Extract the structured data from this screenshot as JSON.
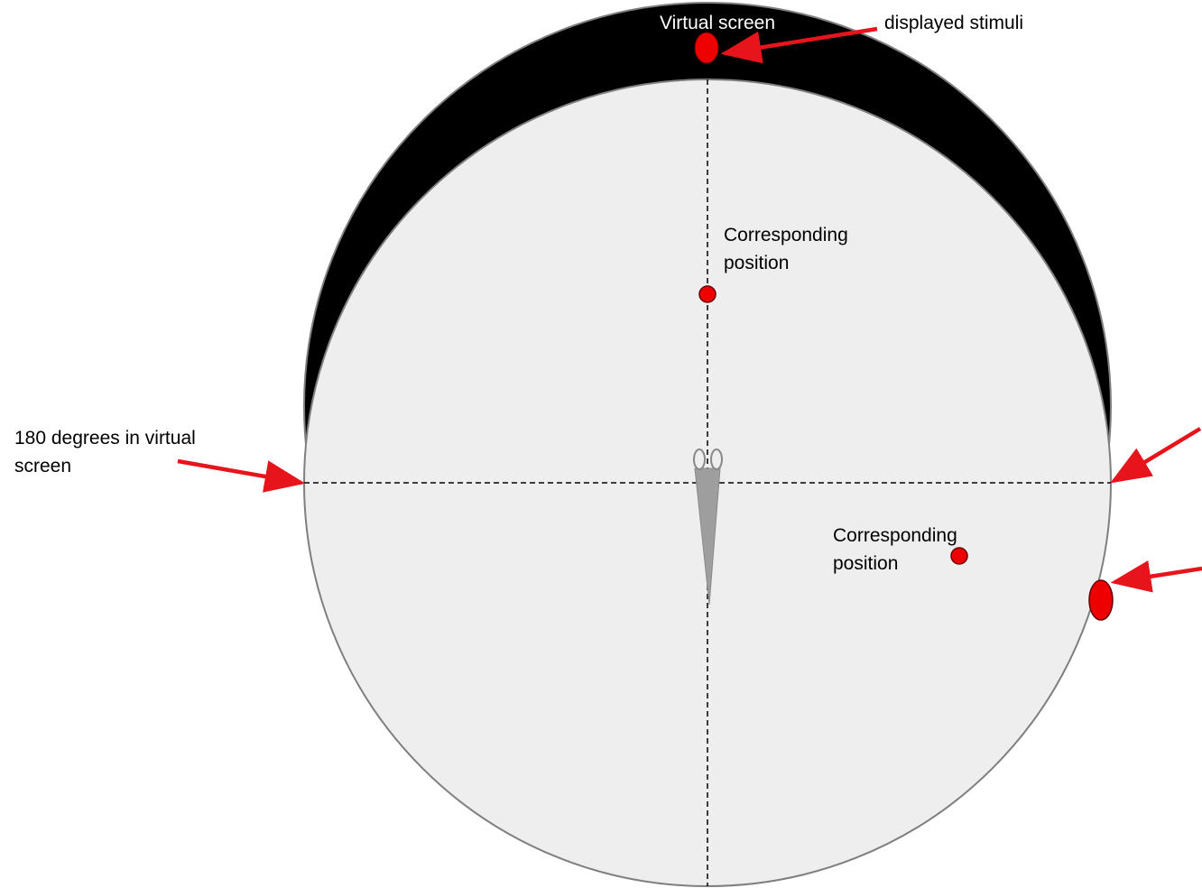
{
  "labels": {
    "virtual_screen": "Virtual screen",
    "displayed_stimuli": "displayed stimuli",
    "corresponding_position_1": "Corresponding",
    "corresponding_position_2": "position",
    "angle_label_1": "180 degrees in virtual",
    "angle_label_2": "screen"
  },
  "colors": {
    "screen_band": "#000000",
    "arena_fill": "#eeeeee",
    "stimulus": "#ee0000",
    "arrow": "#e8141c",
    "fish": "#aaaaaa",
    "axis": "#000000"
  }
}
